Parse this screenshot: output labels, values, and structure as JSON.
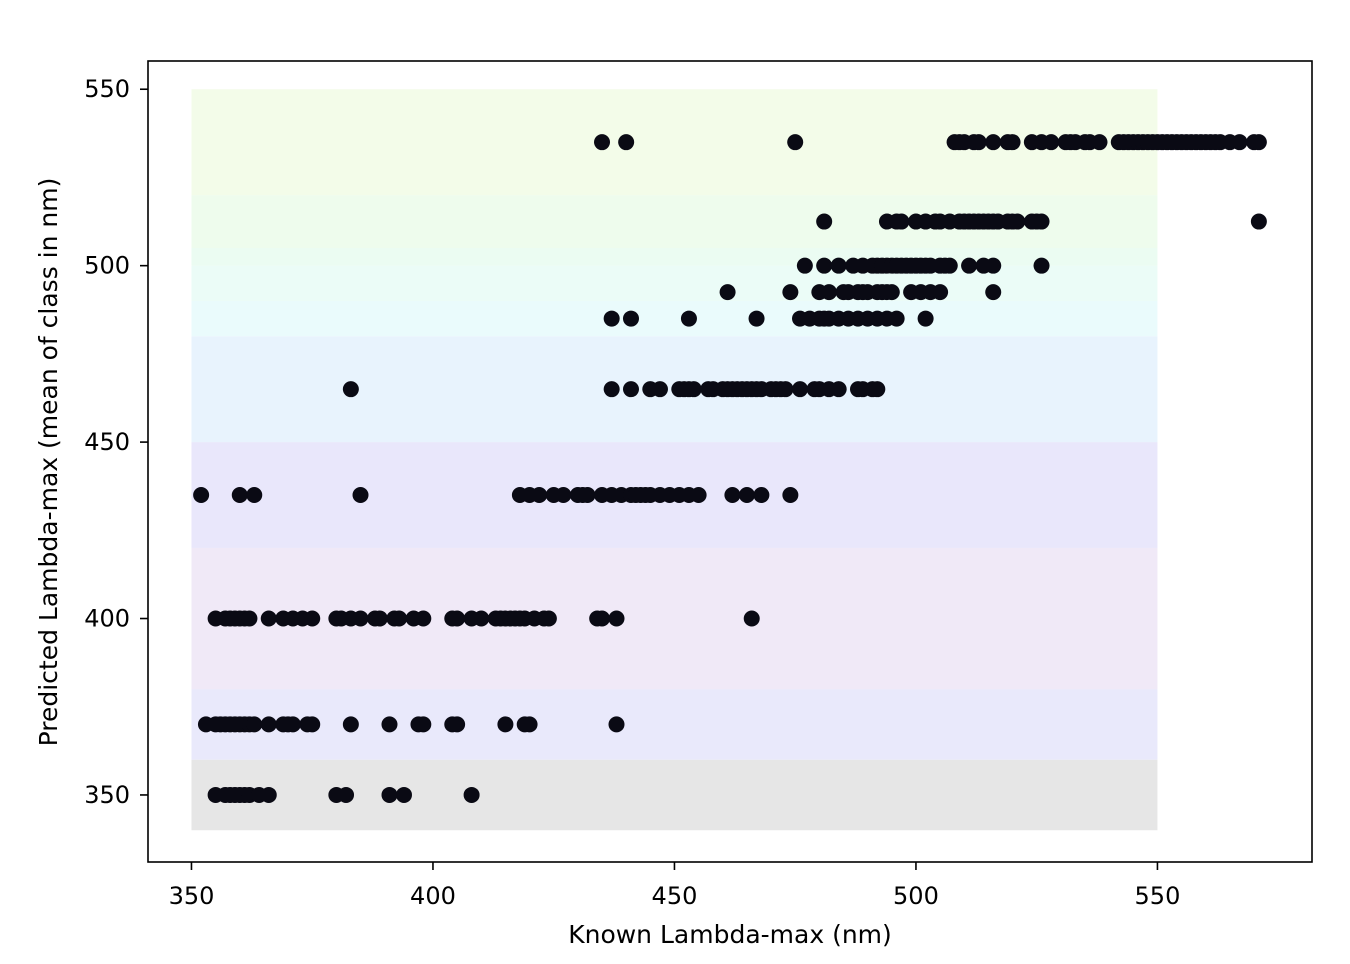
{
  "chart_data": {
    "type": "scatter",
    "title": "",
    "xlabel": "Known Lambda-max (nm)",
    "ylabel": "Predicted Lambda-max (mean of class in nm)",
    "xlim": [
      341,
      582
    ],
    "ylim": [
      331,
      558
    ],
    "grid": false,
    "legend": "none",
    "x_ticks": [
      350,
      400,
      450,
      500,
      550
    ],
    "y_ticks": [
      350,
      400,
      450,
      500,
      550
    ],
    "point_color": "#0a0a14",
    "background_bands": [
      {
        "from": 340,
        "to": 360,
        "color": "#e6e6e6"
      },
      {
        "from": 360,
        "to": 380,
        "color": "#e9e9fb"
      },
      {
        "from": 380,
        "to": 420,
        "color": "#f0e9f7"
      },
      {
        "from": 420,
        "to": 450,
        "color": "#e9e7fb"
      },
      {
        "from": 450,
        "to": 480,
        "color": "#e8f3fd"
      },
      {
        "from": 480,
        "to": 490,
        "color": "#eafbfc"
      },
      {
        "from": 490,
        "to": 500,
        "color": "#ebfcf7"
      },
      {
        "from": 500,
        "to": 505,
        "color": "#ebfcf2"
      },
      {
        "from": 505,
        "to": 520,
        "color": "#eefced"
      },
      {
        "from": 520,
        "to": 550,
        "color": "#f3fce9"
      }
    ],
    "series": [
      {
        "points": [
          [
            355,
            350
          ],
          [
            357,
            350
          ],
          [
            358,
            350
          ],
          [
            359,
            350
          ],
          [
            360,
            350
          ],
          [
            361,
            350
          ],
          [
            362,
            350
          ],
          [
            364,
            350
          ],
          [
            366,
            350
          ],
          [
            380,
            350
          ],
          [
            382,
            350
          ],
          [
            391,
            350
          ],
          [
            394,
            350
          ],
          [
            408,
            350
          ],
          [
            353,
            370
          ],
          [
            355,
            370
          ],
          [
            356,
            370
          ],
          [
            357,
            370
          ],
          [
            358,
            370
          ],
          [
            359,
            370
          ],
          [
            360,
            370
          ],
          [
            361,
            370
          ],
          [
            362,
            370
          ],
          [
            363,
            370
          ],
          [
            366,
            370
          ],
          [
            369,
            370
          ],
          [
            370,
            370
          ],
          [
            371,
            370
          ],
          [
            374,
            370
          ],
          [
            375,
            370
          ],
          [
            383,
            370
          ],
          [
            391,
            370
          ],
          [
            397,
            370
          ],
          [
            398,
            370
          ],
          [
            404,
            370
          ],
          [
            405,
            370
          ],
          [
            415,
            370
          ],
          [
            419,
            370
          ],
          [
            420,
            370
          ],
          [
            438,
            370
          ],
          [
            355,
            400
          ],
          [
            357,
            400
          ],
          [
            358,
            400
          ],
          [
            359,
            400
          ],
          [
            360,
            400
          ],
          [
            361,
            400
          ],
          [
            362,
            400
          ],
          [
            366,
            400
          ],
          [
            369,
            400
          ],
          [
            371,
            400
          ],
          [
            373,
            400
          ],
          [
            375,
            400
          ],
          [
            380,
            400
          ],
          [
            381,
            400
          ],
          [
            383,
            400
          ],
          [
            385,
            400
          ],
          [
            388,
            400
          ],
          [
            389,
            400
          ],
          [
            392,
            400
          ],
          [
            393,
            400
          ],
          [
            396,
            400
          ],
          [
            398,
            400
          ],
          [
            404,
            400
          ],
          [
            405,
            400
          ],
          [
            408,
            400
          ],
          [
            410,
            400
          ],
          [
            413,
            400
          ],
          [
            414,
            400
          ],
          [
            415,
            400
          ],
          [
            416,
            400
          ],
          [
            417,
            400
          ],
          [
            418,
            400
          ],
          [
            419,
            400
          ],
          [
            421,
            400
          ],
          [
            423,
            400
          ],
          [
            424,
            400
          ],
          [
            434,
            400
          ],
          [
            435,
            400
          ],
          [
            438,
            400
          ],
          [
            466,
            400
          ],
          [
            352,
            435
          ],
          [
            360,
            435
          ],
          [
            363,
            435
          ],
          [
            385,
            435
          ],
          [
            418,
            435
          ],
          [
            420,
            435
          ],
          [
            422,
            435
          ],
          [
            425,
            435
          ],
          [
            427,
            435
          ],
          [
            430,
            435
          ],
          [
            431,
            435
          ],
          [
            432,
            435
          ],
          [
            435,
            435
          ],
          [
            437,
            435
          ],
          [
            439,
            435
          ],
          [
            441,
            435
          ],
          [
            442,
            435
          ],
          [
            443,
            435
          ],
          [
            444,
            435
          ],
          [
            445,
            435
          ],
          [
            447,
            435
          ],
          [
            449,
            435
          ],
          [
            451,
            435
          ],
          [
            453,
            435
          ],
          [
            455,
            435
          ],
          [
            462,
            435
          ],
          [
            465,
            435
          ],
          [
            468,
            435
          ],
          [
            474,
            435
          ],
          [
            383,
            465
          ],
          [
            437,
            465
          ],
          [
            441,
            465
          ],
          [
            445,
            465
          ],
          [
            447,
            465
          ],
          [
            451,
            465
          ],
          [
            452,
            465
          ],
          [
            453,
            465
          ],
          [
            454,
            465
          ],
          [
            457,
            465
          ],
          [
            458,
            465
          ],
          [
            460,
            465
          ],
          [
            461,
            465
          ],
          [
            462,
            465
          ],
          [
            463,
            465
          ],
          [
            464,
            465
          ],
          [
            465,
            465
          ],
          [
            466,
            465
          ],
          [
            467,
            465
          ],
          [
            468,
            465
          ],
          [
            470,
            465
          ],
          [
            471,
            465
          ],
          [
            472,
            465
          ],
          [
            473,
            465
          ],
          [
            476,
            465
          ],
          [
            479,
            465
          ],
          [
            480,
            465
          ],
          [
            482,
            465
          ],
          [
            484,
            465
          ],
          [
            488,
            465
          ],
          [
            489,
            465
          ],
          [
            491,
            465
          ],
          [
            492,
            465
          ],
          [
            437,
            485
          ],
          [
            441,
            485
          ],
          [
            453,
            485
          ],
          [
            467,
            485
          ],
          [
            476,
            485
          ],
          [
            478,
            485
          ],
          [
            480,
            485
          ],
          [
            481,
            485
          ],
          [
            482,
            485
          ],
          [
            484,
            485
          ],
          [
            486,
            485
          ],
          [
            488,
            485
          ],
          [
            490,
            485
          ],
          [
            492,
            485
          ],
          [
            494,
            485
          ],
          [
            496,
            485
          ],
          [
            502,
            485
          ],
          [
            461,
            492.5
          ],
          [
            474,
            492.5
          ],
          [
            480,
            492.5
          ],
          [
            482,
            492.5
          ],
          [
            485,
            492.5
          ],
          [
            486,
            492.5
          ],
          [
            488,
            492.5
          ],
          [
            489,
            492.5
          ],
          [
            490,
            492.5
          ],
          [
            492,
            492.5
          ],
          [
            493,
            492.5
          ],
          [
            494,
            492.5
          ],
          [
            495,
            492.5
          ],
          [
            499,
            492.5
          ],
          [
            501,
            492.5
          ],
          [
            503,
            492.5
          ],
          [
            505,
            492.5
          ],
          [
            516,
            492.5
          ],
          [
            477,
            500
          ],
          [
            481,
            500
          ],
          [
            484,
            500
          ],
          [
            487,
            500
          ],
          [
            489,
            500
          ],
          [
            491,
            500
          ],
          [
            492,
            500
          ],
          [
            493,
            500
          ],
          [
            494,
            500
          ],
          [
            495,
            500
          ],
          [
            496,
            500
          ],
          [
            497,
            500
          ],
          [
            498,
            500
          ],
          [
            499,
            500
          ],
          [
            500,
            500
          ],
          [
            501,
            500
          ],
          [
            502,
            500
          ],
          [
            503,
            500
          ],
          [
            505,
            500
          ],
          [
            506,
            500
          ],
          [
            507,
            500
          ],
          [
            511,
            500
          ],
          [
            514,
            500
          ],
          [
            516,
            500
          ],
          [
            526,
            500
          ],
          [
            481,
            512.5
          ],
          [
            494,
            512.5
          ],
          [
            496,
            512.5
          ],
          [
            497,
            512.5
          ],
          [
            500,
            512.5
          ],
          [
            502,
            512.5
          ],
          [
            504,
            512.5
          ],
          [
            505,
            512.5
          ],
          [
            507,
            512.5
          ],
          [
            509,
            512.5
          ],
          [
            510,
            512.5
          ],
          [
            511,
            512.5
          ],
          [
            512,
            512.5
          ],
          [
            513,
            512.5
          ],
          [
            514,
            512.5
          ],
          [
            515,
            512.5
          ],
          [
            516,
            512.5
          ],
          [
            517,
            512.5
          ],
          [
            519,
            512.5
          ],
          [
            520,
            512.5
          ],
          [
            521,
            512.5
          ],
          [
            524,
            512.5
          ],
          [
            525,
            512.5
          ],
          [
            526,
            512.5
          ],
          [
            571,
            512.5
          ],
          [
            435,
            535
          ],
          [
            440,
            535
          ],
          [
            475,
            535
          ],
          [
            508,
            535
          ],
          [
            509,
            535
          ],
          [
            510,
            535
          ],
          [
            512,
            535
          ],
          [
            513,
            535
          ],
          [
            516,
            535
          ],
          [
            519,
            535
          ],
          [
            520,
            535
          ],
          [
            524,
            535
          ],
          [
            526,
            535
          ],
          [
            528,
            535
          ],
          [
            531,
            535
          ],
          [
            532,
            535
          ],
          [
            533,
            535
          ],
          [
            535,
            535
          ],
          [
            536,
            535
          ],
          [
            538,
            535
          ],
          [
            542,
            535
          ],
          [
            543,
            535
          ],
          [
            544,
            535
          ],
          [
            545,
            535
          ],
          [
            546,
            535
          ],
          [
            547,
            535
          ],
          [
            548,
            535
          ],
          [
            549,
            535
          ],
          [
            550,
            535
          ],
          [
            551,
            535
          ],
          [
            552,
            535
          ],
          [
            553,
            535
          ],
          [
            554,
            535
          ],
          [
            555,
            535
          ],
          [
            556,
            535
          ],
          [
            557,
            535
          ],
          [
            558,
            535
          ],
          [
            559,
            535
          ],
          [
            560,
            535
          ],
          [
            561,
            535
          ],
          [
            562,
            535
          ],
          [
            563,
            535
          ],
          [
            565,
            535
          ],
          [
            567,
            535
          ],
          [
            570,
            535
          ],
          [
            571,
            535
          ]
        ]
      }
    ]
  }
}
